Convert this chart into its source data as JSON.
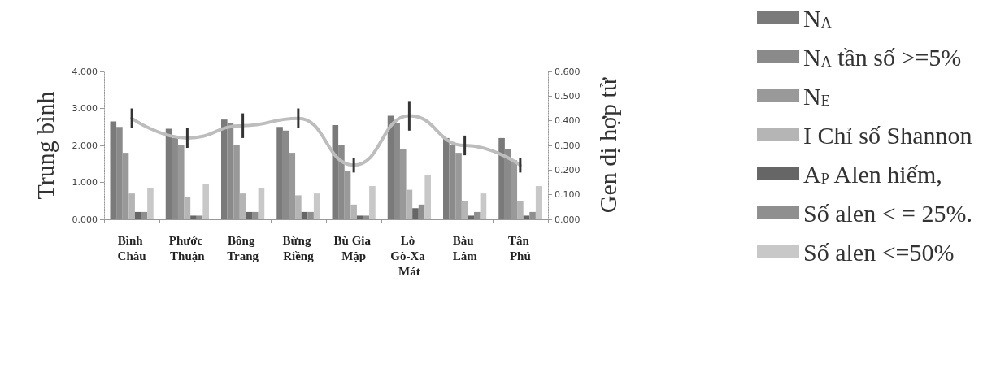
{
  "chart_data": {
    "type": "bar",
    "ylabel": "Trung bình",
    "y2label": "Gen dị hợp tử",
    "categories": [
      "Bình Châu",
      "Phước Thuận",
      "Bồng Trang",
      "Bừng Riềng",
      "Bù Gia Mập",
      "Lò Gò-Xa Mát",
      "Bàu Lâm",
      "Tân Phú"
    ],
    "ylim": [
      0,
      4
    ],
    "yticks": [
      {
        "value": 0,
        "label": "0.000"
      },
      {
        "value": 1,
        "label": "1.000"
      },
      {
        "value": 2,
        "label": "2.000"
      },
      {
        "value": 3,
        "label": "3.000"
      },
      {
        "value": 4,
        "label": "4.000"
      }
    ],
    "y2lim": [
      0,
      0.6
    ],
    "y2ticks": [
      {
        "value": 0,
        "label": "0.000"
      },
      {
        "value": 0.1,
        "label": "0.100"
      },
      {
        "value": 0.2,
        "label": "0.200"
      },
      {
        "value": 0.3,
        "label": "0.300"
      },
      {
        "value": 0.4,
        "label": "0.400"
      },
      {
        "value": 0.5,
        "label": "0.500"
      },
      {
        "value": 0.6,
        "label": "0.600"
      }
    ],
    "series": [
      {
        "name": "N$_{A}$",
        "color": "#7a7a7a",
        "values": [
          2.65,
          2.45,
          2.7,
          2.5,
          2.55,
          2.8,
          2.2,
          2.2
        ]
      },
      {
        "name": "N$_{A}$ tần số >=5%",
        "color": "#8a8a8a",
        "values": [
          2.5,
          2.2,
          2.6,
          2.4,
          2.0,
          2.6,
          2.0,
          1.9
        ]
      },
      {
        "name": "N$_{E}$",
        "color": "#999999",
        "values": [
          1.8,
          2.0,
          2.0,
          1.8,
          1.3,
          1.9,
          1.8,
          1.6
        ]
      },
      {
        "name": "I Chỉ số Shannon",
        "color": "#b5b5b5",
        "values": [
          0.7,
          0.6,
          0.7,
          0.65,
          0.4,
          0.8,
          0.5,
          0.5
        ]
      },
      {
        "name": "A$_{P}$ Alen hiếm,",
        "color": "#666666",
        "values": [
          0.2,
          0.1,
          0.2,
          0.2,
          0.1,
          0.3,
          0.1,
          0.1
        ]
      },
      {
        "name": "Số alen < = 25%.",
        "color": "#8f8f8f",
        "values": [
          0.2,
          0.1,
          0.2,
          0.2,
          0.1,
          0.4,
          0.2,
          0.2
        ]
      },
      {
        "name": "Số alen <=50%",
        "color": "#c8c8c8",
        "values": [
          0.85,
          0.95,
          0.85,
          0.7,
          0.9,
          1.2,
          0.7,
          0.9
        ]
      },
      {
        "type": "line",
        "axis": "y2",
        "color": "#bdbdbd",
        "values": [
          0.41,
          0.33,
          0.38,
          0.41,
          0.22,
          0.42,
          0.3,
          0.22
        ],
        "errors": [
          0.04,
          0.04,
          0.05,
          0.04,
          0.03,
          0.06,
          0.04,
          0.03
        ]
      }
    ],
    "legend": "right",
    "grid": false,
    "marker": "none",
    "line_style": "solid"
  }
}
